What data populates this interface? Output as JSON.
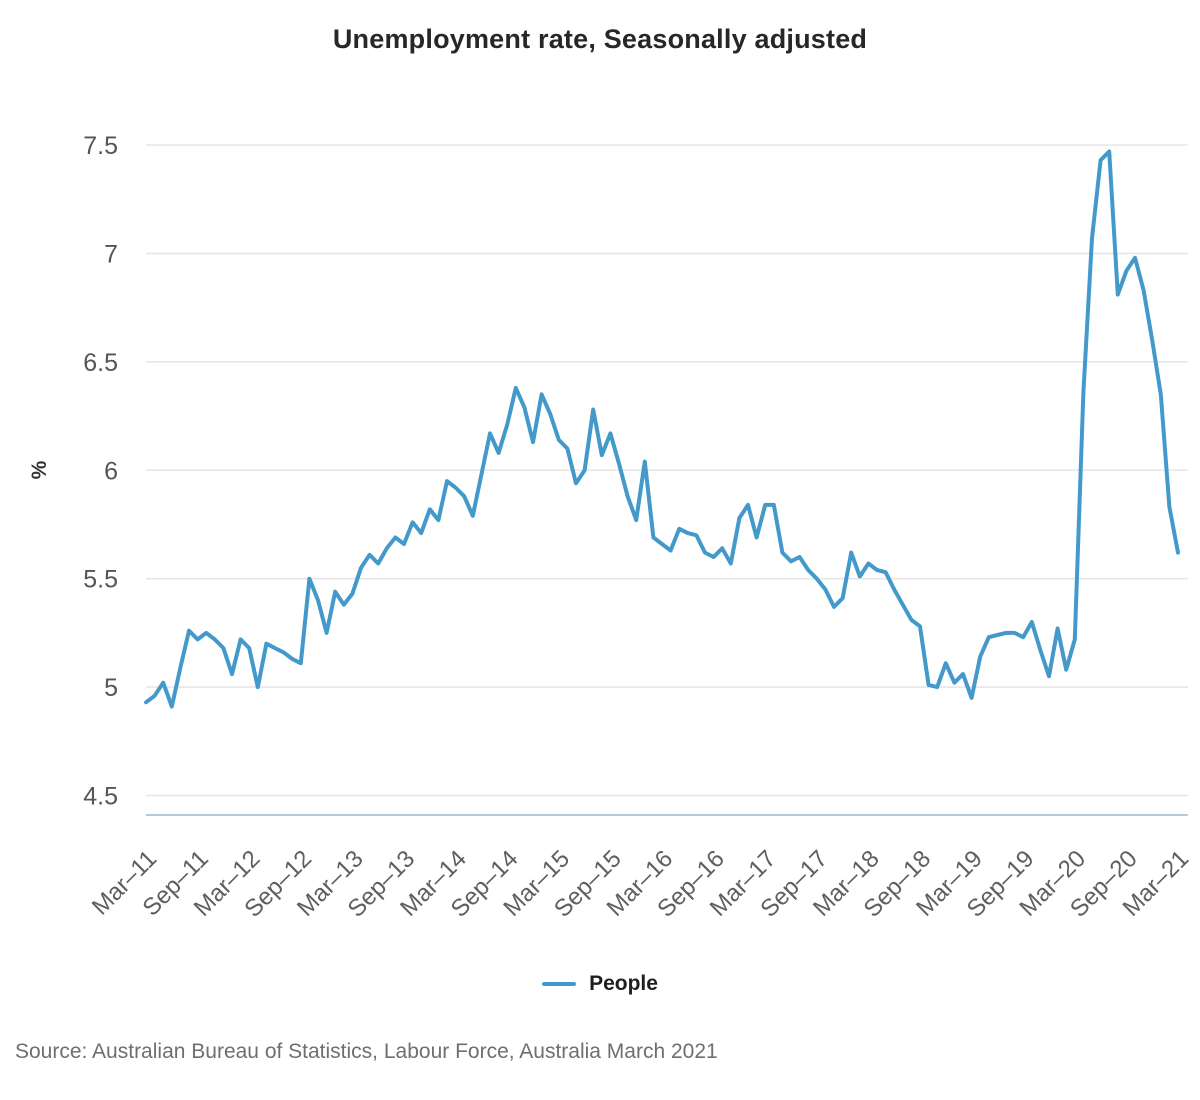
{
  "chart_data": {
    "type": "line",
    "title": "Unemployment rate, Seasonally adjusted",
    "xlabel": "",
    "ylabel": "%",
    "ylim": [
      4.5,
      7.5
    ],
    "ytick_step": 0.5,
    "grid": "horizontal",
    "legend_position": "bottom",
    "x_tick_every": 6,
    "x_tick_labels": [
      "Mar–11",
      "Sep–11",
      "Mar–12",
      "Sep–12",
      "Mar–13",
      "Sep–13",
      "Mar–14",
      "Sep–14",
      "Mar–15",
      "Sep–15",
      "Mar–16",
      "Sep–16",
      "Mar–17",
      "Sep–17",
      "Mar–18",
      "Sep–18",
      "Mar–19",
      "Sep–19",
      "Mar–20",
      "Sep–20",
      "Mar–21"
    ],
    "x_range": "Mar-2011 to Mar-2021, monthly",
    "series": [
      {
        "name": "People",
        "color": "#4499cb",
        "values": [
          4.93,
          4.96,
          5.02,
          4.91,
          5.09,
          5.26,
          5.22,
          5.25,
          5.22,
          5.18,
          5.06,
          5.22,
          5.18,
          5.0,
          5.2,
          5.18,
          5.16,
          5.13,
          5.11,
          5.5,
          5.4,
          5.25,
          5.44,
          5.38,
          5.43,
          5.55,
          5.61,
          5.57,
          5.64,
          5.69,
          5.66,
          5.76,
          5.71,
          5.82,
          5.77,
          5.95,
          5.92,
          5.88,
          5.79,
          5.98,
          6.17,
          6.08,
          6.21,
          6.38,
          6.29,
          6.13,
          6.35,
          6.26,
          6.14,
          6.1,
          5.94,
          6.0,
          6.28,
          6.07,
          6.17,
          6.03,
          5.88,
          5.77,
          6.04,
          5.69,
          5.66,
          5.63,
          5.73,
          5.71,
          5.7,
          5.62,
          5.6,
          5.64,
          5.57,
          5.78,
          5.84,
          5.69,
          5.84,
          5.84,
          5.62,
          5.58,
          5.6,
          5.54,
          5.5,
          5.45,
          5.37,
          5.41,
          5.62,
          5.51,
          5.57,
          5.54,
          5.53,
          5.45,
          5.38,
          5.31,
          5.28,
          5.01,
          5.0,
          5.11,
          5.02,
          5.06,
          4.95,
          5.14,
          5.23,
          5.24,
          5.25,
          5.25,
          5.23,
          5.3,
          5.17,
          5.05,
          5.27,
          5.08,
          5.22,
          6.36,
          7.07,
          7.43,
          7.47,
          6.81,
          6.92,
          6.98,
          6.83,
          6.6,
          6.35,
          5.83,
          5.62
        ]
      }
    ]
  },
  "colors": {
    "line": "#4499cb",
    "gridline": "#e6e6e6",
    "axis_baseline": "#b9c7dd",
    "y_tick_text": "#555555",
    "x_tick_text": "#5f5f5f",
    "unit_text": "#333333"
  },
  "source_note": "Source: Australian Bureau of Statistics, Labour Force, Australia March 2021"
}
